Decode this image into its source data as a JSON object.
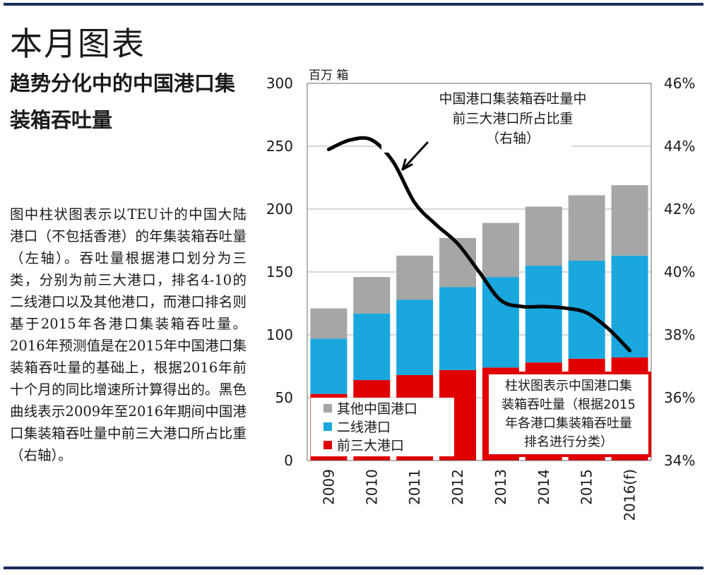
{
  "header": {
    "heading": "本月图表",
    "subtitle": "趋势分化中的中国港口集装箱吞吐量"
  },
  "description": "图中柱状图表示以TEU计的中国大陆港口（不包括香港）的年集装箱吞吐量（左轴）。吞吐量根据港口划分为三类，分别为前三大港口，排名4-10的二线港口以及其他港口，而港口排名则基于2015年各港口集装箱吞吐量。2016年预测值是在2015年中国港口集装箱吞吐量的基础上，根据2016年前十个月的同比增速所计算得出的。黑色曲线表示2009年至2016年期间中国港口集装箱吞吐量中前三大港口所占比重（右轴）。",
  "colors": {
    "rule": "#1c2e5a",
    "top3": "#e00000",
    "second_tier": "#1aa7de",
    "other": "#a6a6a6",
    "line": "#000000",
    "grid": "#c8c8c8",
    "callout_border": "#e00000"
  },
  "chart_data": {
    "type": "bar",
    "stacked": true,
    "categories": [
      "2009",
      "2010",
      "2011",
      "2012",
      "2013",
      "2014",
      "2015",
      "2016(f)"
    ],
    "series": [
      {
        "name": "前三大港口",
        "values": [
          53,
          64,
          68,
          72,
          74,
          78,
          81,
          82
        ]
      },
      {
        "name": "二线港口",
        "values": [
          44,
          53,
          60,
          66,
          72,
          77,
          78,
          81
        ]
      },
      {
        "name": "其他中国港口",
        "values": [
          24,
          29,
          35,
          39,
          43,
          47,
          52,
          56
        ]
      }
    ],
    "line_series": {
      "axis": "right",
      "x": [
        2009,
        2009.5,
        2010,
        2010.5,
        2011,
        2011.5,
        2012,
        2012.5,
        2013,
        2013.5,
        2014,
        2014.5,
        2015,
        2015.5,
        2016
      ],
      "values": [
        43.9,
        44.2,
        44.2,
        43.5,
        42.2,
        41.5,
        40.9,
        40.0,
        39.1,
        38.9,
        38.9,
        38.85,
        38.7,
        38.2,
        37.5
      ]
    },
    "ylabel": "百万 箱",
    "ylim": [
      0,
      300
    ],
    "y_ticks": [
      0,
      50,
      100,
      150,
      200,
      250,
      300
    ],
    "y2_ticks": [
      "34%",
      "36%",
      "38%",
      "40%",
      "42%",
      "44%",
      "46%"
    ],
    "y2_range": [
      34,
      46
    ],
    "grid": true,
    "legend_position": "bottom-left",
    "annotations": {
      "line_note": [
        "中国港口集装箱吞吐量中",
        "前三大港口所占比重",
        "（右轴）"
      ],
      "bar_note": [
        "柱状图表示中国港口集",
        "装箱吞吐量（根据2015",
        "年各港口集装箱吞吐量",
        "排名进行分类）"
      ]
    }
  }
}
